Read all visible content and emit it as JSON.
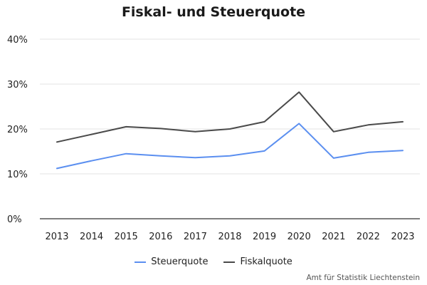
{
  "chart_data": {
    "type": "line",
    "title": "Fiskal- und Steuerquote",
    "xlabel": "",
    "ylabel": "",
    "x": [
      "2013",
      "2014",
      "2015",
      "2016",
      "2017",
      "2018",
      "2019",
      "2020",
      "2021",
      "2022",
      "2023"
    ],
    "ylim": [
      0,
      40
    ],
    "yticks": [
      "0%",
      "10%",
      "20%",
      "30%",
      "40%"
    ],
    "ytick_values": [
      0,
      10,
      20,
      30,
      40
    ],
    "grid": true,
    "legend_position": "bottom",
    "series": [
      {
        "name": "Steuerquote",
        "color": "#5b8ff0",
        "values": [
          11.2,
          12.9,
          14.5,
          14.0,
          13.6,
          14.0,
          15.1,
          21.2,
          13.5,
          14.8,
          15.2
        ]
      },
      {
        "name": "Fiskalquote",
        "color": "#4a4a4a",
        "values": [
          17.1,
          18.8,
          20.5,
          20.1,
          19.4,
          20.0,
          21.6,
          28.2,
          19.4,
          20.9,
          21.6
        ]
      }
    ],
    "source": "Amt für Statistik Liechtenstein"
  }
}
